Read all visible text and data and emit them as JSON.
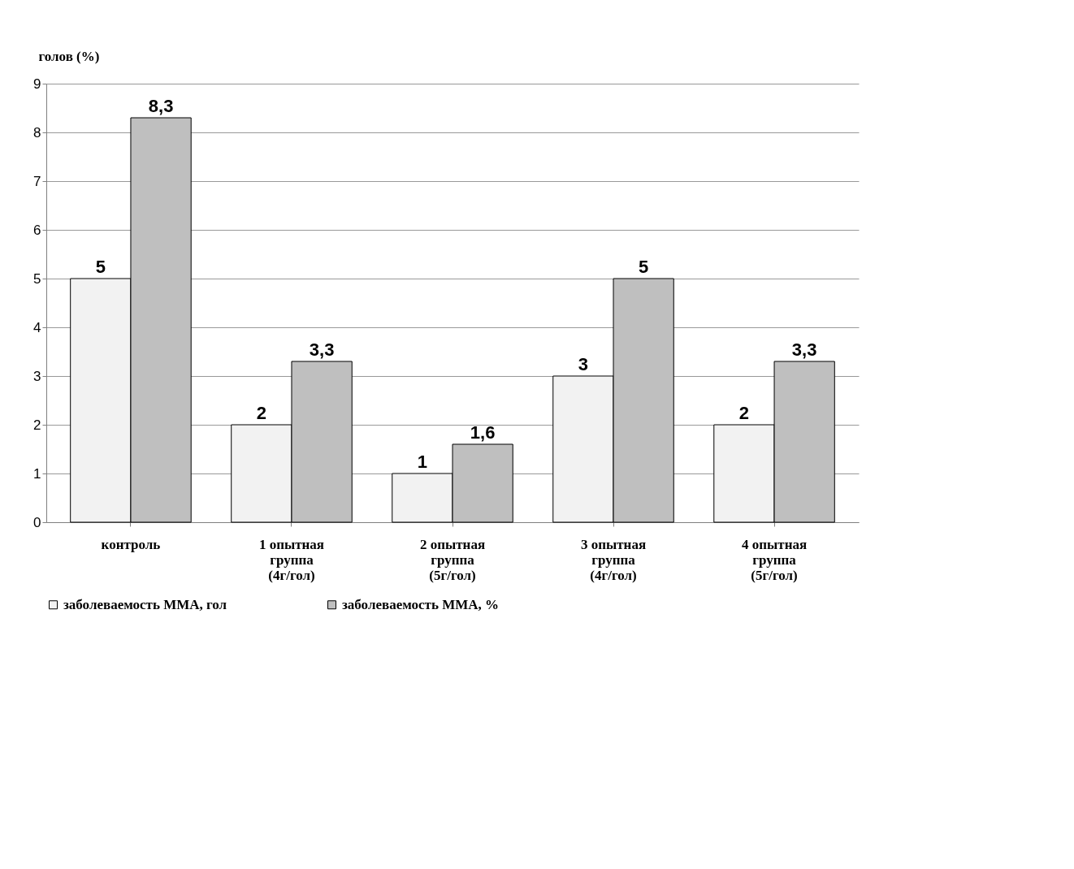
{
  "chart_data": {
    "type": "bar",
    "ylabel": "голов (%)",
    "categories": [
      "контроль",
      "1 опытная\nгруппа\n(4г/гол)",
      "2 опытная\nгруппа\n(5г/гол)",
      "3 опытная\nгруппа\n(4г/гол)",
      "4 опытная\nгруппа\n(5г/гол)"
    ],
    "series": [
      {
        "name": "заболеваемость ММА, гол",
        "color": "#f2f2f2",
        "values": [
          5,
          2,
          1,
          3,
          2
        ],
        "value_labels": [
          "5",
          "2",
          "1",
          "3",
          "2"
        ]
      },
      {
        "name": "заболеваемость ММА, %",
        "color": "#bfbfbf",
        "values": [
          8.3,
          3.3,
          1.6,
          5,
          3.3
        ],
        "value_labels": [
          "8,3",
          "3,3",
          "1,6",
          "5",
          "3,3"
        ]
      }
    ],
    "ylim": [
      0,
      9
    ],
    "yticks": [
      0,
      1,
      2,
      3,
      4,
      5,
      6,
      7,
      8,
      9
    ],
    "grid": "y",
    "legend": "bottom"
  }
}
